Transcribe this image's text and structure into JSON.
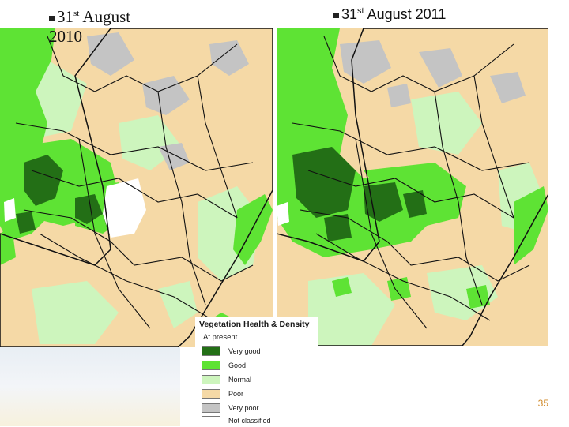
{
  "captions": {
    "left": {
      "day": "31",
      "suffix": "st",
      "month": " August",
      "year": "2010"
    },
    "right": {
      "day": "31",
      "suffix": "st",
      "rest": " August 2011"
    }
  },
  "legend": {
    "title": "Vegetation Health & Density",
    "subtitle": "At present",
    "items": [
      {
        "label": "Very good",
        "color": "#236f16"
      },
      {
        "label": "Good",
        "color": "#5ee334"
      },
      {
        "label": "Normal",
        "color": "#cdf5bd"
      },
      {
        "label": "Poor",
        "color": "#f5d9a6"
      },
      {
        "label": "Very poor",
        "color": "#c4c4c4"
      },
      {
        "label": "Not classified",
        "color": "#ffffff"
      }
    ]
  },
  "page_number": "35",
  "colors": {
    "very_good": "#236f16",
    "good": "#5ee334",
    "normal": "#cdf5bd",
    "poor": "#f5d9a6",
    "very_poor": "#c4c4c4",
    "boundary": "#111111",
    "page_number": "#d08a2a"
  }
}
